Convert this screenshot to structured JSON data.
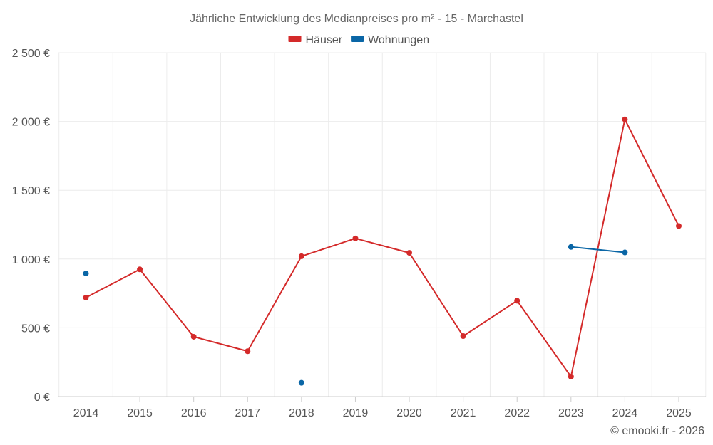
{
  "chart_data": {
    "type": "line",
    "title": "Jährliche Entwicklung des Medianpreises pro m² - 15 - Marchastel",
    "categories": [
      "2014",
      "2015",
      "2016",
      "2017",
      "2018",
      "2019",
      "2020",
      "2021",
      "2022",
      "2023",
      "2024",
      "2025"
    ],
    "ylim": [
      0,
      2500
    ],
    "yticks": [
      0,
      500,
      1000,
      1500,
      2000,
      2500
    ],
    "ytick_labels": [
      "0 €",
      "500 €",
      "1 000 €",
      "1 500 €",
      "2 000 €",
      "2 500 €"
    ],
    "xlabel": "",
    "ylabel": "",
    "grid": true,
    "legend_position": "top-center",
    "series": [
      {
        "name": "Häuser",
        "color": "#d42a2a",
        "values": [
          720,
          925,
          435,
          330,
          1020,
          1150,
          1045,
          440,
          697,
          145,
          2015,
          1240
        ]
      },
      {
        "name": "Wohnungen",
        "color": "#0a66a6",
        "values": [
          895,
          null,
          null,
          null,
          100,
          null,
          null,
          null,
          null,
          1088,
          1048,
          null
        ]
      }
    ]
  },
  "credit": "© emooki.fr - 2026"
}
